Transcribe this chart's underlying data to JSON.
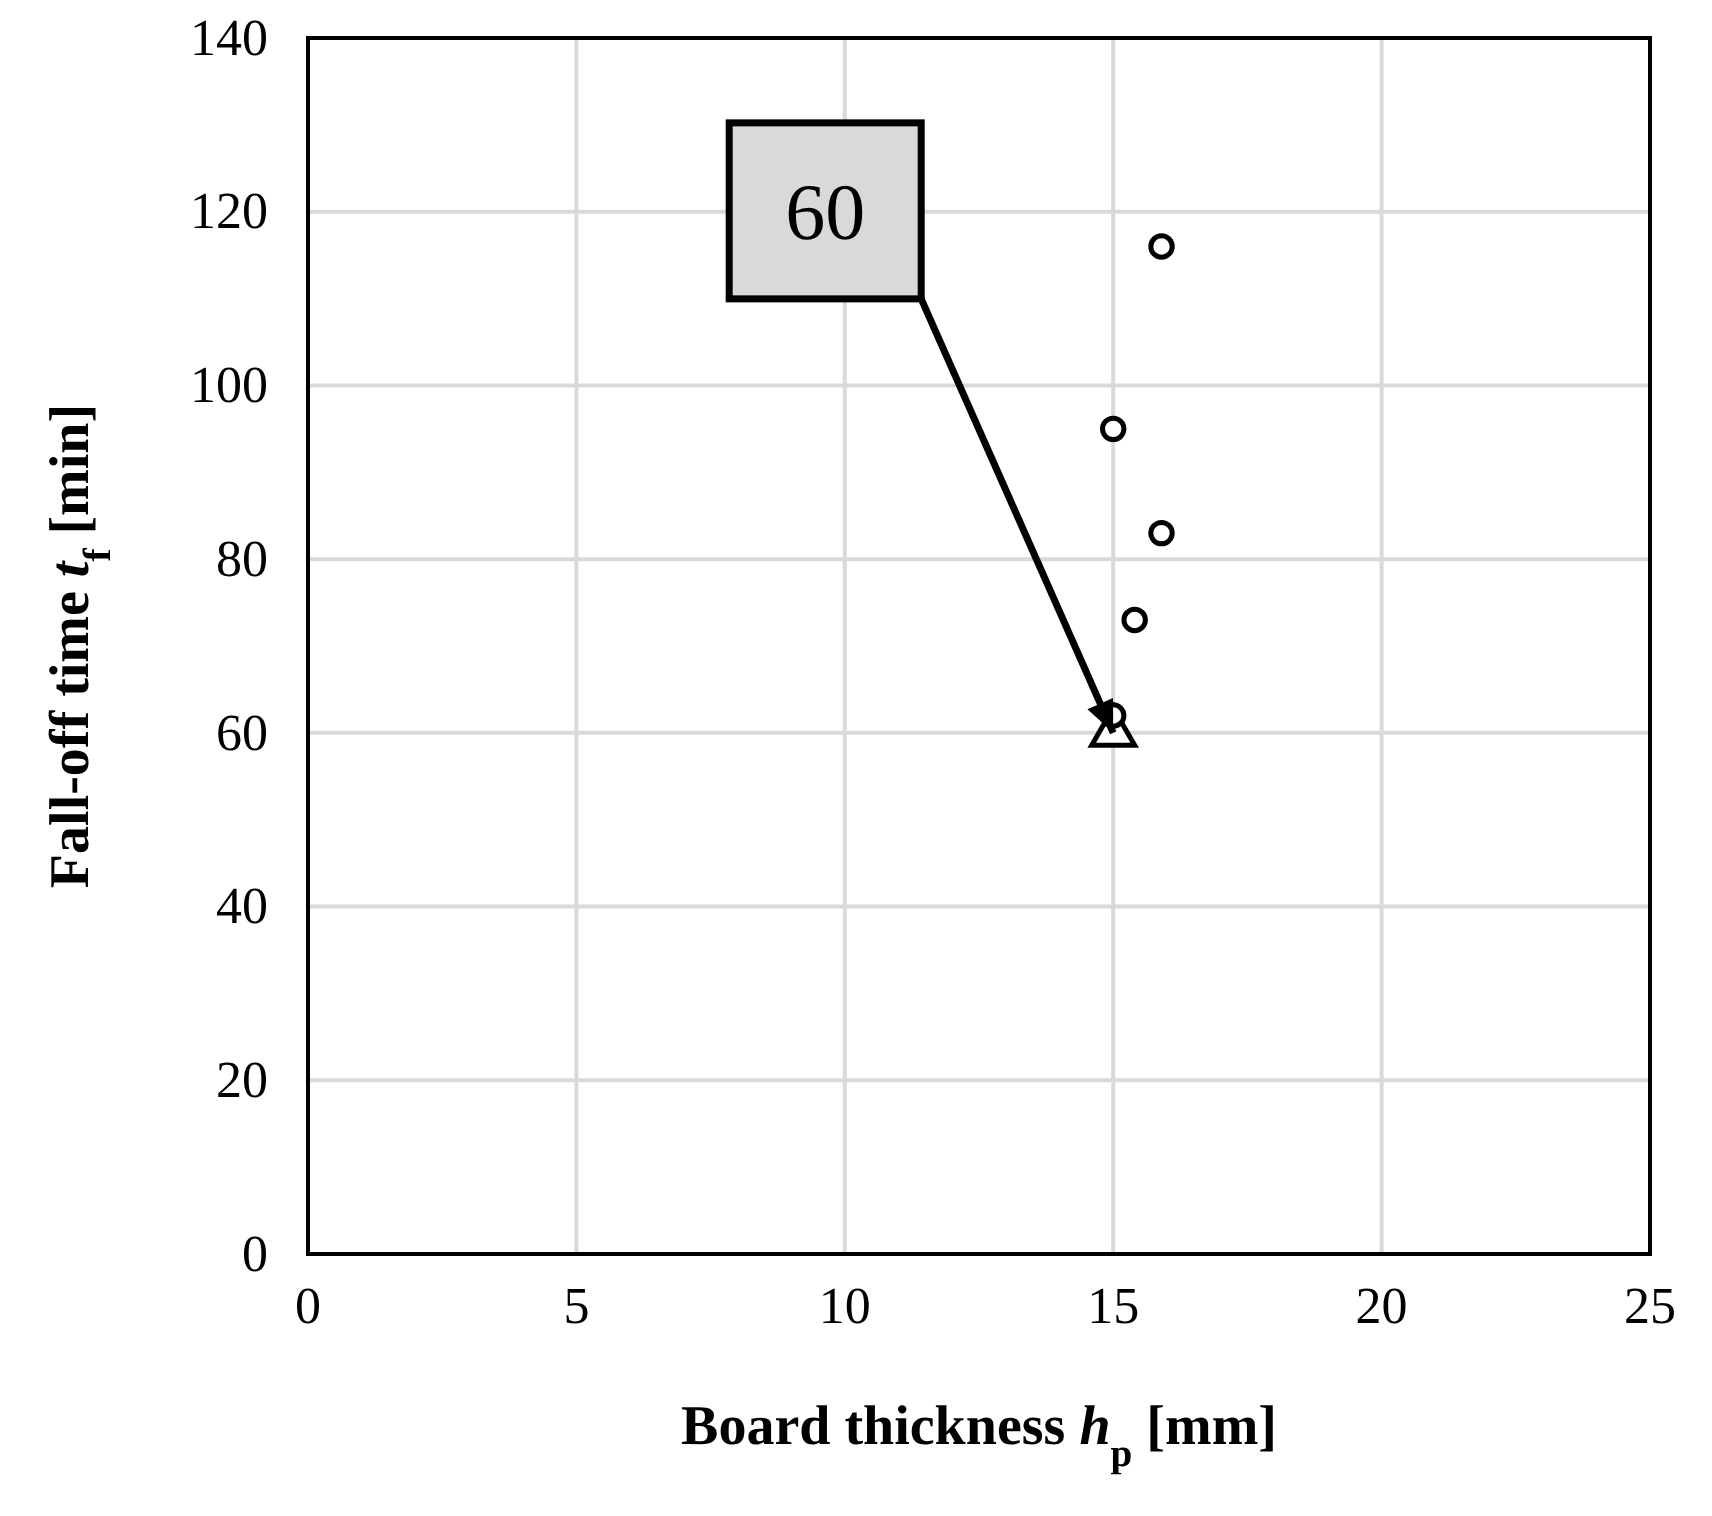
{
  "chart_data": {
    "type": "scatter",
    "xlabel": "Board thickness h$_{p}$ [mm]",
    "ylabel": "Fall-off time t$_{f}$ [min]",
    "xlim": [
      0,
      25
    ],
    "xticks": [
      0,
      5,
      10,
      15,
      20,
      25
    ],
    "ylim": [
      0,
      140
    ],
    "yticks": [
      0,
      20,
      40,
      60,
      80,
      100,
      120,
      140
    ],
    "grid": true,
    "series": [
      {
        "color": "#000000",
        "marker": "circle",
        "x": [
          15.9,
          15.0,
          15.9,
          15.4,
          15.0
        ],
        "values": [
          116,
          95,
          83,
          73,
          62
        ]
      },
      {
        "color": "#000000",
        "marker": "triangle",
        "x": [
          15.0
        ],
        "values": [
          60
        ]
      }
    ],
    "annotations": [
      {
        "text": "60",
        "x": 15,
        "y": 60
      }
    ]
  }
}
